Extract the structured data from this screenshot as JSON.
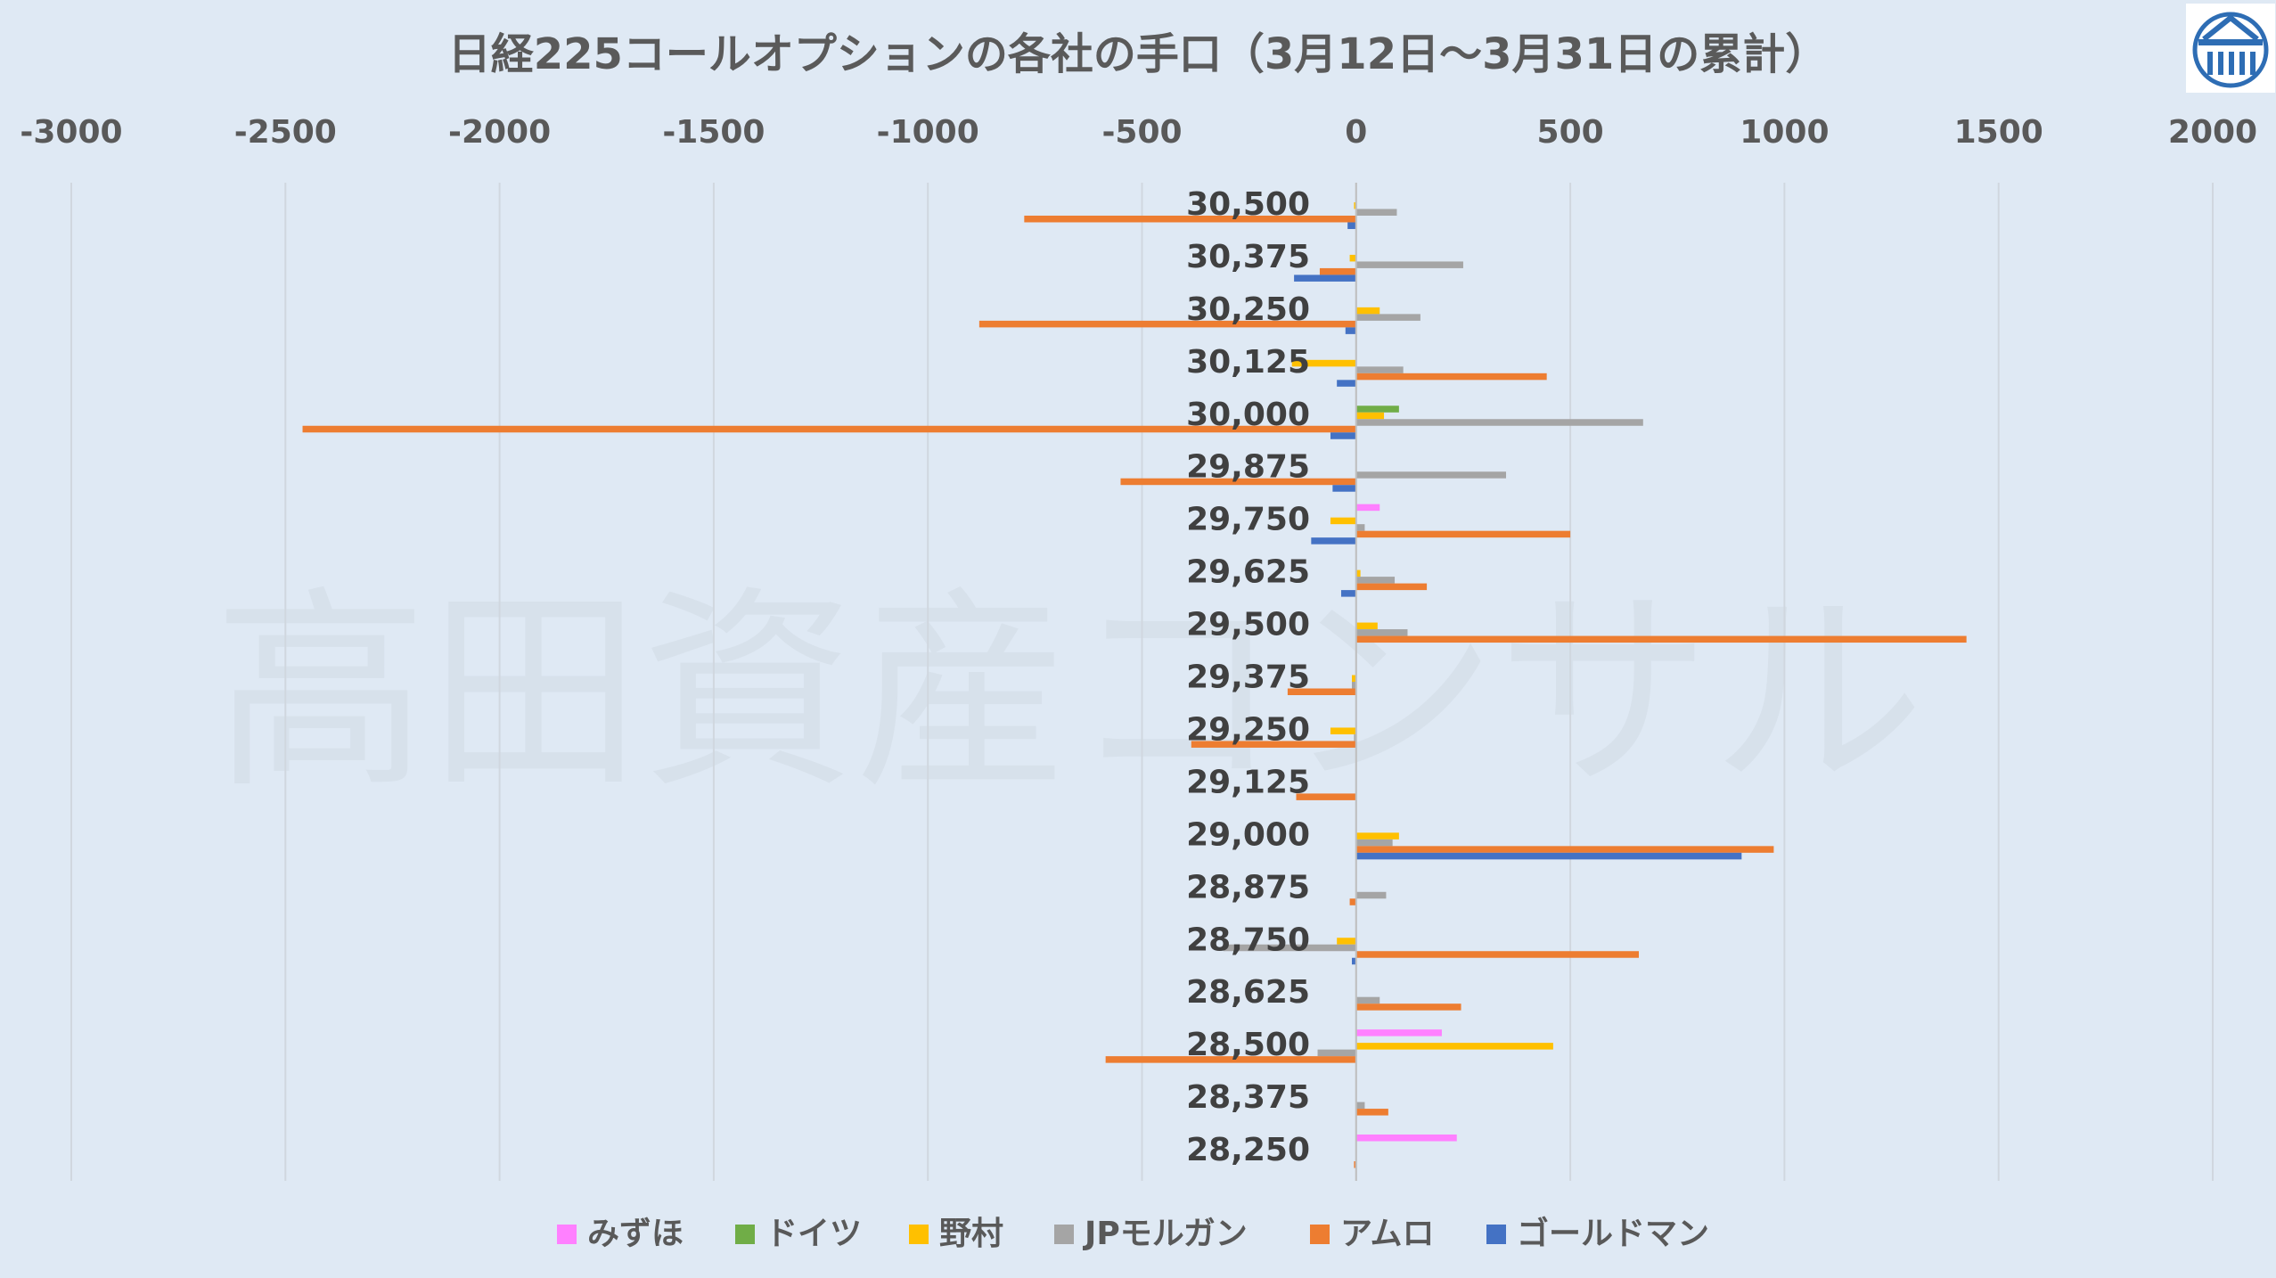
{
  "chart_data": {
    "type": "bar",
    "orientation": "horizontal",
    "title": "日経225コールオプションの各社の手口（3月12日～3月31日の累計）",
    "xlim": [
      -3000,
      2000
    ],
    "xticks": [
      -3000,
      -2500,
      -2000,
      -1500,
      -1000,
      -500,
      0,
      500,
      1000,
      1500,
      2000
    ],
    "grid": true,
    "legend_position": "bottom",
    "categories": [
      "30,500",
      "30,375",
      "30,250",
      "30,125",
      "30,000",
      "29,875",
      "29,750",
      "29,625",
      "29,500",
      "29,375",
      "29,250",
      "29,125",
      "29,000",
      "28,875",
      "28,750",
      "28,625",
      "28,500",
      "28,375",
      "28,250"
    ],
    "series": [
      {
        "name": "みずほ",
        "color": "#ff80ff",
        "values": [
          0,
          0,
          0,
          0,
          0,
          0,
          55,
          0,
          0,
          0,
          0,
          0,
          0,
          0,
          0,
          0,
          200,
          0,
          235
        ]
      },
      {
        "name": "ドイツ",
        "color": "#70ad47",
        "values": [
          0,
          0,
          0,
          0,
          100,
          0,
          0,
          0,
          0,
          0,
          0,
          0,
          0,
          0,
          0,
          0,
          0,
          0,
          0
        ]
      },
      {
        "name": "野村",
        "color": "#ffc000",
        "values": [
          -5,
          -15,
          55,
          -150,
          65,
          0,
          -60,
          10,
          50,
          -10,
          -60,
          0,
          100,
          0,
          -45,
          0,
          460,
          0,
          0
        ]
      },
      {
        "name": "JPモルガン",
        "color": "#a5a5a5",
        "values": [
          95,
          250,
          150,
          110,
          670,
          350,
          20,
          90,
          120,
          -10,
          -5,
          0,
          85,
          70,
          -310,
          55,
          -90,
          20,
          0
        ]
      },
      {
        "name": "アムロ",
        "color": "#ed7d31",
        "values": [
          -775,
          -85,
          -880,
          445,
          -2460,
          -550,
          500,
          165,
          1425,
          -160,
          -385,
          -140,
          975,
          -15,
          660,
          245,
          -585,
          75,
          -5
        ]
      },
      {
        "name": "ゴールドマン",
        "color": "#4472c4",
        "values": [
          -20,
          -145,
          -25,
          -45,
          -60,
          -55,
          -105,
          -35,
          0,
          0,
          0,
          0,
          900,
          0,
          -10,
          0,
          0,
          0,
          0
        ]
      }
    ]
  },
  "watermark": "高田資産コンサル",
  "logo_icon": "takata-logo-icon"
}
